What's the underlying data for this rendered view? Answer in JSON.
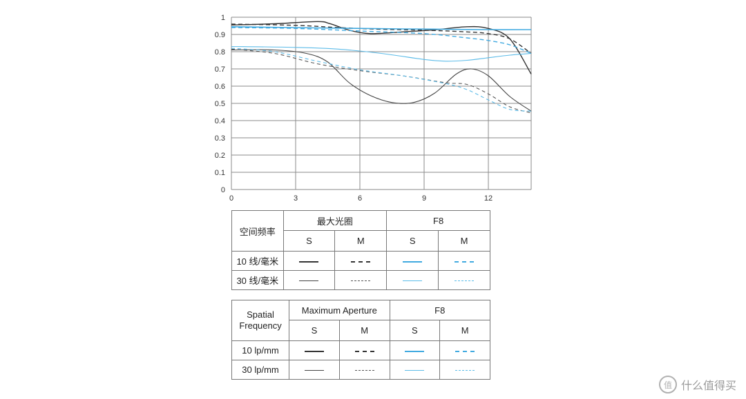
{
  "chart_data": {
    "type": "line",
    "xlim": [
      0,
      14
    ],
    "ylim": [
      0,
      1
    ],
    "x_ticks": [
      "0",
      "3",
      "6",
      "9",
      "12"
    ],
    "y_ticks": [
      "0",
      "0.1",
      "0.2",
      "0.3",
      "0.4",
      "0.5",
      "0.6",
      "0.7",
      "0.8",
      "0.9",
      "1"
    ],
    "grid": true,
    "series": [
      {
        "id": "max-10-S",
        "color": "#333333",
        "dash": "",
        "width": 1.4,
        "points": [
          [
            0,
            0.955
          ],
          [
            2,
            0.962
          ],
          [
            4,
            0.975
          ],
          [
            4.6,
            0.963
          ],
          [
            5.5,
            0.925
          ],
          [
            6.5,
            0.905
          ],
          [
            8,
            0.915
          ],
          [
            9.5,
            0.927
          ],
          [
            11,
            0.945
          ],
          [
            12,
            0.935
          ],
          [
            13,
            0.875
          ],
          [
            14,
            0.67
          ]
        ]
      },
      {
        "id": "max-10-M",
        "color": "#333333",
        "dash": "6,4",
        "width": 1.4,
        "points": [
          [
            0,
            0.96
          ],
          [
            3,
            0.953
          ],
          [
            5,
            0.94
          ],
          [
            7,
            0.93
          ],
          [
            9,
            0.925
          ],
          [
            11,
            0.915
          ],
          [
            12,
            0.905
          ],
          [
            13,
            0.875
          ],
          [
            14,
            0.79
          ]
        ]
      },
      {
        "id": "max-30-S",
        "color": "#444444",
        "dash": "",
        "width": 1.1,
        "points": [
          [
            0,
            0.81
          ],
          [
            2,
            0.81
          ],
          [
            3.5,
            0.79
          ],
          [
            4.5,
            0.74
          ],
          [
            5.5,
            0.62
          ],
          [
            6.5,
            0.545
          ],
          [
            7.5,
            0.505
          ],
          [
            8.5,
            0.505
          ],
          [
            9.5,
            0.56
          ],
          [
            10.5,
            0.67
          ],
          [
            11.2,
            0.7
          ],
          [
            12,
            0.66
          ],
          [
            13,
            0.54
          ],
          [
            14,
            0.455
          ]
        ]
      },
      {
        "id": "max-30-M",
        "color": "#555555",
        "dash": "5,4",
        "width": 1.1,
        "points": [
          [
            0,
            0.815
          ],
          [
            2,
            0.79
          ],
          [
            4,
            0.73
          ],
          [
            6,
            0.69
          ],
          [
            8,
            0.66
          ],
          [
            10,
            0.62
          ],
          [
            11,
            0.61
          ],
          [
            12,
            0.555
          ],
          [
            13,
            0.48
          ],
          [
            14,
            0.445
          ]
        ]
      },
      {
        "id": "f8-10-S",
        "color": "#3fa9e0",
        "dash": "",
        "width": 1.6,
        "points": [
          [
            0,
            0.945
          ],
          [
            4,
            0.938
          ],
          [
            8,
            0.932
          ],
          [
            10,
            0.93
          ],
          [
            12,
            0.928
          ],
          [
            14,
            0.928
          ]
        ]
      },
      {
        "id": "f8-10-M",
        "color": "#3fa9e0",
        "dash": "6,4",
        "width": 1.4,
        "points": [
          [
            0,
            0.94
          ],
          [
            3,
            0.935
          ],
          [
            6,
            0.92
          ],
          [
            9,
            0.905
          ],
          [
            11,
            0.88
          ],
          [
            12,
            0.865
          ],
          [
            13,
            0.84
          ],
          [
            14,
            0.79
          ]
        ]
      },
      {
        "id": "f8-30-S",
        "color": "#5bbbe8",
        "dash": "",
        "width": 1.1,
        "points": [
          [
            0,
            0.83
          ],
          [
            3,
            0.825
          ],
          [
            5,
            0.815
          ],
          [
            7,
            0.79
          ],
          [
            9,
            0.755
          ],
          [
            10,
            0.745
          ],
          [
            11,
            0.75
          ],
          [
            12,
            0.765
          ],
          [
            13,
            0.78
          ],
          [
            14,
            0.79
          ]
        ]
      },
      {
        "id": "f8-30-M",
        "color": "#5bbbe8",
        "dash": "5,4",
        "width": 1.1,
        "points": [
          [
            0,
            0.82
          ],
          [
            2,
            0.8
          ],
          [
            4,
            0.745
          ],
          [
            6,
            0.695
          ],
          [
            8,
            0.66
          ],
          [
            10,
            0.615
          ],
          [
            11,
            0.58
          ],
          [
            12,
            0.52
          ],
          [
            13,
            0.465
          ],
          [
            14,
            0.455
          ]
        ]
      }
    ]
  },
  "legend_cn": {
    "header_row_label": "空间频率",
    "group_max": "最大光圈",
    "group_f8": "F8",
    "col_s": "S",
    "col_m": "M",
    "row_10": "10 线/毫米",
    "row_30": "30 线/毫米"
  },
  "legend_en": {
    "header_row_label": "Spatial Frequency",
    "group_max": "Maximum Aperture",
    "group_f8": "F8",
    "col_s": "S",
    "col_m": "M",
    "row_10": "10 lp/mm",
    "row_30": "30 lp/mm"
  },
  "watermark": {
    "icon": "zhi-icon",
    "text": "什么值得买"
  }
}
